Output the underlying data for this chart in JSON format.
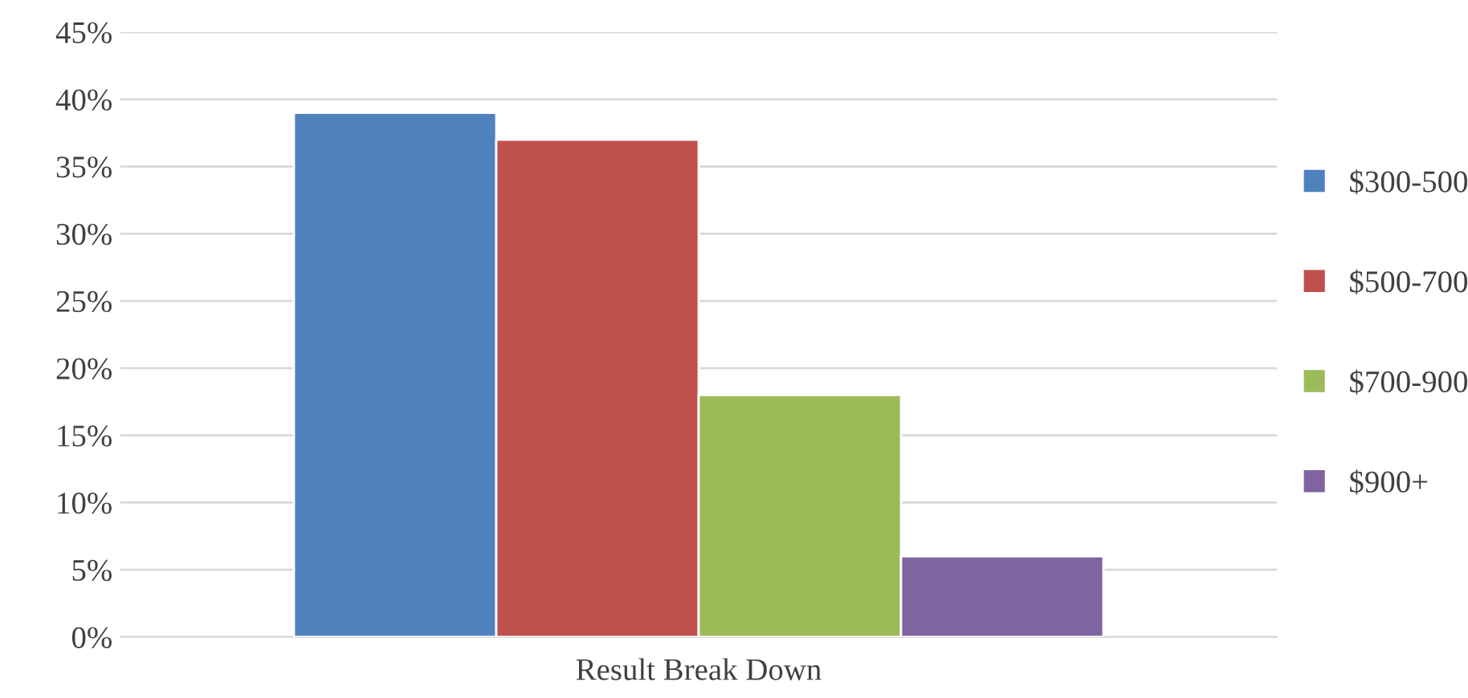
{
  "chart_data": {
    "type": "bar",
    "xlabel": "Result Break Down",
    "categories": [
      null
    ],
    "series": [
      {
        "name": "$300-500",
        "color": "#4f81bd",
        "values": [
          39
        ]
      },
      {
        "name": "$500-700",
        "color": "#c0504d",
        "values": [
          37
        ]
      },
      {
        "name": "$700-900",
        "color": "#9bbb59",
        "values": [
          18
        ]
      },
      {
        "name": "$900+",
        "color": "#8064a2",
        "values": [
          6
        ]
      }
    ],
    "ylim": [
      0,
      45
    ],
    "yticks": [
      {
        "value": 0,
        "label": "0%"
      },
      {
        "value": 5,
        "label": "5%"
      },
      {
        "value": 10,
        "label": "10%"
      },
      {
        "value": 15,
        "label": "15%"
      },
      {
        "value": 20,
        "label": "20%"
      },
      {
        "value": 25,
        "label": "25%"
      },
      {
        "value": 30,
        "label": "30%"
      },
      {
        "value": 35,
        "label": "35%"
      },
      {
        "value": 40,
        "label": "40%"
      },
      {
        "value": 45,
        "label": "45%"
      }
    ],
    "grid": "y",
    "legend": "right"
  }
}
